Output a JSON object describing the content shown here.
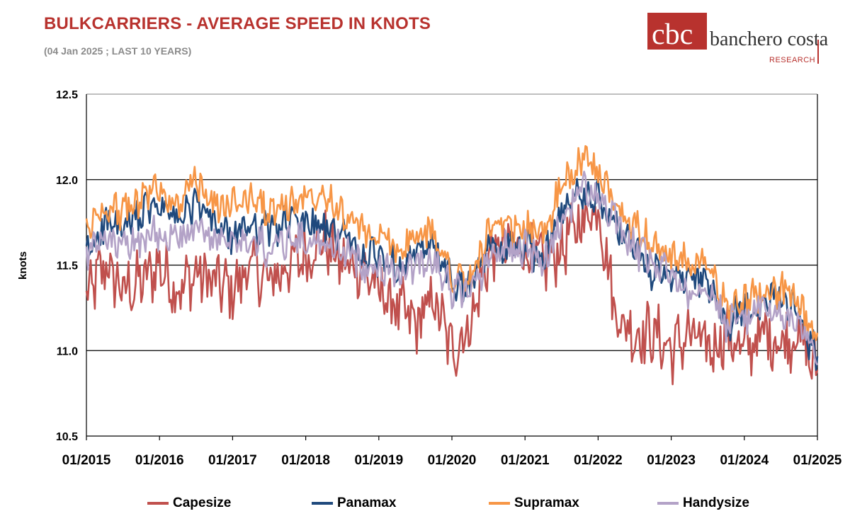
{
  "header": {
    "title": "BULKCARRIERS - AVERAGE SPEED IN KNOTS",
    "subtitle": "(04 Jan 2025 ; LAST 10 YEARS)"
  },
  "logo": {
    "brand": "banchero costa",
    "sub": "RESEARCH",
    "color": "#b8322e"
  },
  "chart_data": {
    "type": "line",
    "title": "BULKCARRIERS - AVERAGE SPEED IN KNOTS",
    "ylabel": "knots",
    "xlabel": "",
    "ylim": [
      10.5,
      12.5
    ],
    "xlim": [
      2015.0,
      2025.0
    ],
    "y_ticks": [
      "10.5",
      "11.0",
      "11.5",
      "12.0",
      "12.5"
    ],
    "x_ticks": [
      "01/2015",
      "01/2016",
      "01/2017",
      "01/2018",
      "01/2019",
      "01/2020",
      "01/2021",
      "01/2022",
      "01/2023",
      "01/2024",
      "01/2025"
    ],
    "grid": "horizontal",
    "legend": "bottom",
    "series": [
      {
        "name": "Capesize",
        "color": "#c0504d",
        "x": [
          2015.0,
          2015.25,
          2015.5,
          2015.75,
          2016.0,
          2016.25,
          2016.5,
          2016.75,
          2017.0,
          2017.25,
          2017.5,
          2017.75,
          2018.0,
          2018.25,
          2018.5,
          2018.75,
          2019.0,
          2019.25,
          2019.5,
          2019.75,
          2020.0,
          2020.25,
          2020.5,
          2020.75,
          2021.0,
          2021.25,
          2021.5,
          2021.75,
          2022.0,
          2022.25,
          2022.5,
          2022.75,
          2023.0,
          2023.25,
          2023.5,
          2023.75,
          2024.0,
          2024.25,
          2024.5,
          2024.75,
          2025.0
        ],
        "values": [
          11.3,
          11.5,
          11.35,
          11.4,
          11.5,
          11.35,
          11.45,
          11.4,
          11.35,
          11.5,
          11.4,
          11.5,
          11.55,
          11.65,
          11.5,
          11.5,
          11.35,
          11.25,
          11.15,
          11.3,
          11.0,
          11.15,
          11.55,
          11.6,
          11.6,
          11.5,
          11.6,
          11.75,
          11.85,
          11.2,
          11.1,
          11.1,
          11.0,
          11.1,
          11.0,
          11.1,
          11.0,
          11.1,
          11.05,
          11.1,
          10.85
        ]
      },
      {
        "name": "Panamax",
        "color": "#1f497d",
        "x": [
          2015.0,
          2015.25,
          2015.5,
          2015.75,
          2016.0,
          2016.25,
          2016.5,
          2016.75,
          2017.0,
          2017.25,
          2017.5,
          2017.75,
          2018.0,
          2018.25,
          2018.5,
          2018.75,
          2019.0,
          2019.25,
          2019.5,
          2019.75,
          2020.0,
          2020.25,
          2020.5,
          2020.75,
          2021.0,
          2021.25,
          2021.5,
          2021.75,
          2022.0,
          2022.25,
          2022.5,
          2022.75,
          2023.0,
          2023.25,
          2023.5,
          2023.75,
          2024.0,
          2024.25,
          2024.5,
          2024.75,
          2025.0
        ],
        "values": [
          11.55,
          11.75,
          11.7,
          11.8,
          11.85,
          11.75,
          11.85,
          11.75,
          11.65,
          11.75,
          11.7,
          11.75,
          11.75,
          11.7,
          11.7,
          11.55,
          11.55,
          11.5,
          11.55,
          11.6,
          11.4,
          11.35,
          11.6,
          11.6,
          11.6,
          11.55,
          11.8,
          11.95,
          11.9,
          11.7,
          11.6,
          11.45,
          11.45,
          11.4,
          11.4,
          11.15,
          11.25,
          11.3,
          11.35,
          11.2,
          10.95
        ]
      },
      {
        "name": "Supramax",
        "color": "#f79646",
        "x": [
          2015.0,
          2015.25,
          2015.5,
          2015.75,
          2016.0,
          2016.25,
          2016.5,
          2016.75,
          2017.0,
          2017.25,
          2017.5,
          2017.75,
          2018.0,
          2018.25,
          2018.5,
          2018.75,
          2019.0,
          2019.25,
          2019.5,
          2019.75,
          2020.0,
          2020.25,
          2020.5,
          2020.75,
          2021.0,
          2021.25,
          2021.5,
          2021.75,
          2022.0,
          2022.25,
          2022.5,
          2022.75,
          2023.0,
          2023.25,
          2023.5,
          2023.75,
          2024.0,
          2024.25,
          2024.5,
          2024.75,
          2025.0
        ],
        "values": [
          11.7,
          11.85,
          11.8,
          11.9,
          11.95,
          11.85,
          12.0,
          11.85,
          11.85,
          11.9,
          11.8,
          11.85,
          11.9,
          11.95,
          11.8,
          11.7,
          11.65,
          11.6,
          11.65,
          11.7,
          11.45,
          11.4,
          11.7,
          11.7,
          11.7,
          11.7,
          11.95,
          12.1,
          12.05,
          11.85,
          11.75,
          11.6,
          11.55,
          11.5,
          11.5,
          11.25,
          11.3,
          11.35,
          11.35,
          11.25,
          11.05
        ]
      },
      {
        "name": "Handysize",
        "color": "#b3a2c7",
        "x": [
          2015.0,
          2015.25,
          2015.5,
          2015.75,
          2016.0,
          2016.25,
          2016.5,
          2016.75,
          2017.0,
          2017.25,
          2017.5,
          2017.75,
          2018.0,
          2018.25,
          2018.5,
          2018.75,
          2019.0,
          2019.25,
          2019.5,
          2019.75,
          2020.0,
          2020.25,
          2020.5,
          2020.75,
          2021.0,
          2021.25,
          2021.5,
          2021.75,
          2022.0,
          2022.25,
          2022.5,
          2022.75,
          2023.0,
          2023.25,
          2023.5,
          2023.75,
          2024.0,
          2024.25,
          2024.5,
          2024.75,
          2025.0
        ],
        "values": [
          11.55,
          11.65,
          11.6,
          11.65,
          11.7,
          11.65,
          11.7,
          11.65,
          11.6,
          11.65,
          11.6,
          11.65,
          11.65,
          11.6,
          11.6,
          11.5,
          11.5,
          11.45,
          11.5,
          11.55,
          11.35,
          11.35,
          11.55,
          11.6,
          11.6,
          11.5,
          11.75,
          11.95,
          11.9,
          11.75,
          11.6,
          11.5,
          11.45,
          11.35,
          11.4,
          11.15,
          11.2,
          11.25,
          11.2,
          11.15,
          10.95
        ]
      }
    ]
  }
}
